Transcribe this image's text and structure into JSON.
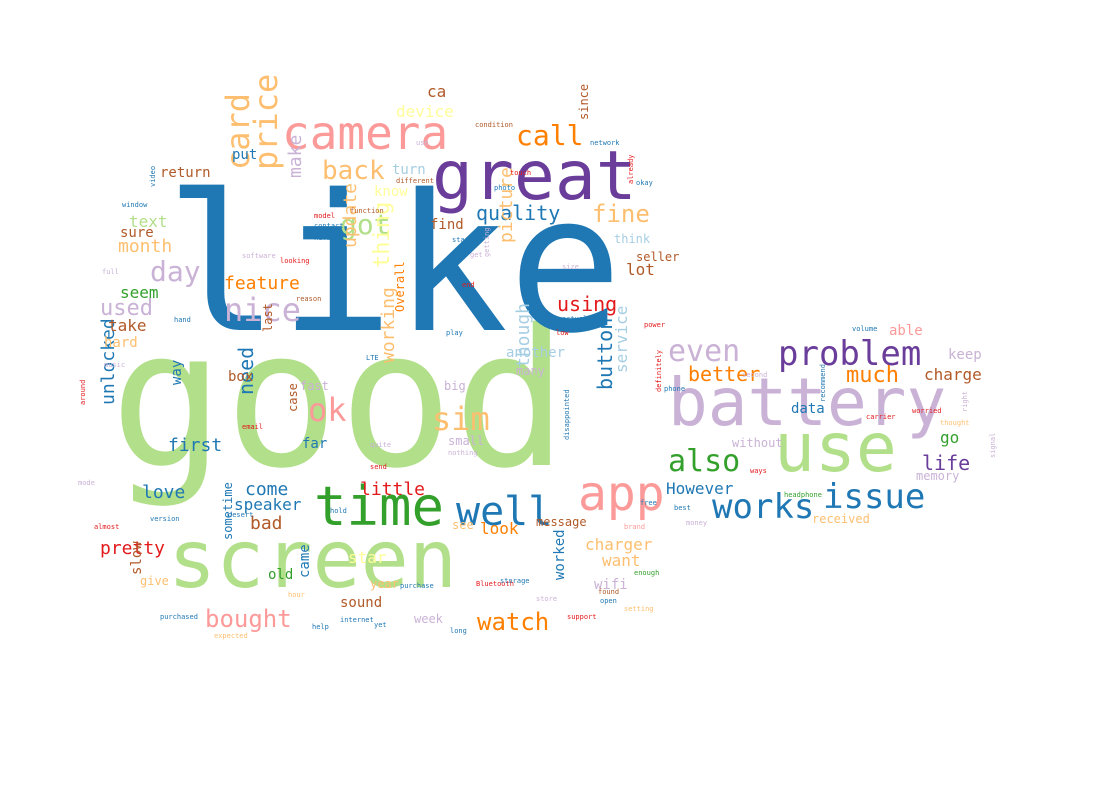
{
  "words": [
    {
      "text": "good",
      "color": "#b2df8a"
    },
    {
      "text": "like",
      "color": "#1f78b4"
    },
    {
      "text": "screen",
      "color": "#b2df8a"
    },
    {
      "text": "great",
      "color": "#6a3d9a"
    },
    {
      "text": "battery",
      "color": "#cab2d6"
    },
    {
      "text": "use",
      "color": "#b2df8a"
    },
    {
      "text": "camera",
      "color": "#fb9a99"
    },
    {
      "text": "time",
      "color": "#33a02c"
    },
    {
      "text": "app",
      "color": "#fb9a99"
    },
    {
      "text": "well",
      "color": "#1f78b4"
    },
    {
      "text": "works",
      "color": "#1f78b4"
    },
    {
      "text": "issue",
      "color": "#1f78b4"
    },
    {
      "text": "problem",
      "color": "#6a3d9a"
    },
    {
      "text": "even",
      "color": "#cab2d6"
    },
    {
      "text": "also",
      "color": "#33a02c"
    },
    {
      "text": "price",
      "color": "#fdbf6f"
    },
    {
      "text": "card",
      "color": "#fdbf6f"
    },
    {
      "text": "call",
      "color": "#ff7f00"
    },
    {
      "text": "back",
      "color": "#fdbf6f"
    },
    {
      "text": "got",
      "color": "#b2df8a"
    },
    {
      "text": "nice",
      "color": "#cab2d6"
    },
    {
      "text": "day",
      "color": "#cab2d6"
    },
    {
      "text": "ok",
      "color": "#fb9a99"
    },
    {
      "text": "sim",
      "color": "#fdbf6f"
    },
    {
      "text": "fine",
      "color": "#fdbf6f"
    },
    {
      "text": "quality",
      "color": "#1f78b4"
    },
    {
      "text": "thing",
      "color": "#ffff99"
    },
    {
      "text": "much",
      "color": "#ff7f00"
    },
    {
      "text": "better",
      "color": "#ff7f00"
    },
    {
      "text": "life",
      "color": "#6a3d9a"
    },
    {
      "text": "bought",
      "color": "#fb9a99"
    },
    {
      "text": "watch",
      "color": "#ff7f00"
    },
    {
      "text": "used",
      "color": "#cab2d6"
    },
    {
      "text": "need",
      "color": "#1f78b4"
    },
    {
      "text": "using",
      "color": "#e31a1c"
    },
    {
      "text": "update",
      "color": "#fdbf6f"
    },
    {
      "text": "feature",
      "color": "#ff7f00"
    },
    {
      "text": "picture",
      "color": "#fdbf6f"
    },
    {
      "text": "make",
      "color": "#cab2d6"
    },
    {
      "text": "month",
      "color": "#fdbf6f"
    },
    {
      "text": "charge",
      "color": "#b15928"
    },
    {
      "text": "first",
      "color": "#1f78b4"
    },
    {
      "text": "unlocked",
      "color": "#1f78b4"
    },
    {
      "text": "love",
      "color": "#1f78b4"
    },
    {
      "text": "come",
      "color": "#1f78b4"
    },
    {
      "text": "little",
      "color": "#e31a1c"
    },
    {
      "text": "However",
      "color": "#1f78b4"
    },
    {
      "text": "button",
      "color": "#1f78b4"
    },
    {
      "text": "though",
      "color": "#a6cee3"
    },
    {
      "text": "working",
      "color": "#fdbf6f"
    },
    {
      "text": "service",
      "color": "#a6cee3"
    },
    {
      "text": "charger",
      "color": "#fdbf6f"
    },
    {
      "text": "pretty",
      "color": "#e31a1c"
    },
    {
      "text": "bad",
      "color": "#b15928"
    },
    {
      "text": "speaker",
      "color": "#1f78b4"
    },
    {
      "text": "look",
      "color": "#ff7f00"
    },
    {
      "text": "text",
      "color": "#b2df8a"
    },
    {
      "text": "seem",
      "color": "#33a02c"
    },
    {
      "text": "take",
      "color": "#b15928"
    },
    {
      "text": "lot",
      "color": "#b15928"
    },
    {
      "text": "return",
      "color": "#b15928"
    },
    {
      "text": "sure",
      "color": "#b15928"
    },
    {
      "text": "go",
      "color": "#33a02c"
    },
    {
      "text": "data",
      "color": "#1f78b4"
    },
    {
      "text": "box",
      "color": "#b15928"
    },
    {
      "text": "keep",
      "color": "#cab2d6"
    },
    {
      "text": "device",
      "color": "#ffff99"
    },
    {
      "text": "ca",
      "color": "#b15928"
    },
    {
      "text": "put",
      "color": "#1f78b4"
    },
    {
      "text": "turn",
      "color": "#a6cee3"
    },
    {
      "text": "know",
      "color": "#ffff99"
    },
    {
      "text": "find",
      "color": "#b15928"
    },
    {
      "text": "think",
      "color": "#a6cee3"
    },
    {
      "text": "seller",
      "color": "#b15928"
    },
    {
      "text": "able",
      "color": "#fb9a99"
    },
    {
      "text": "another",
      "color": "#a6cee3"
    },
    {
      "text": "want",
      "color": "#fdbf6f"
    },
    {
      "text": "star",
      "color": "#ffff99"
    },
    {
      "text": "came",
      "color": "#1f78b4"
    },
    {
      "text": "old",
      "color": "#33a02c"
    },
    {
      "text": "case",
      "color": "#b15928"
    },
    {
      "text": "far",
      "color": "#1f78b4"
    },
    {
      "text": "hard",
      "color": "#fdbf6f"
    },
    {
      "text": "message",
      "color": "#b15928"
    },
    {
      "text": "wifi",
      "color": "#cab2d6"
    },
    {
      "text": "sound",
      "color": "#b15928"
    },
    {
      "text": "year",
      "color": "#fdbf6f"
    },
    {
      "text": "week",
      "color": "#cab2d6"
    },
    {
      "text": "worked",
      "color": "#1f78b4"
    },
    {
      "text": "slow",
      "color": "#b15928"
    },
    {
      "text": "give",
      "color": "#fdbf6f"
    },
    {
      "text": "sometime",
      "color": "#1f78b4"
    },
    {
      "text": "last",
      "color": "#b15928"
    },
    {
      "text": "Overall",
      "color": "#ff7f00"
    },
    {
      "text": "way",
      "color": "#1f78b4"
    },
    {
      "text": "many",
      "color": "#cab2d6"
    },
    {
      "text": "small",
      "color": "#cab2d6"
    },
    {
      "text": "without",
      "color": "#cab2d6"
    },
    {
      "text": "memory",
      "color": "#cab2d6"
    },
    {
      "text": "since",
      "color": "#b15928"
    },
    {
      "text": "received",
      "color": "#fdbf6f"
    },
    {
      "text": "fast",
      "color": "#cab2d6"
    },
    {
      "text": "big",
      "color": "#cab2d6"
    },
    {
      "text": "see",
      "color": "#fdbf6f"
    },
    {
      "text": "condition",
      "color": "#b15928"
    },
    {
      "text": "network",
      "color": "#1f78b4"
    },
    {
      "text": "different",
      "color": "#b15928"
    },
    {
      "text": "contact",
      "color": "#1f78b4"
    },
    {
      "text": "function",
      "color": "#b15928"
    },
    {
      "text": "software",
      "color": "#cab2d6"
    },
    {
      "text": "Bluetooth",
      "color": "#e31a1c"
    },
    {
      "text": "internet",
      "color": "#1f78b4"
    },
    {
      "text": "purchase",
      "color": "#1f78b4"
    },
    {
      "text": "storage",
      "color": "#1f78b4"
    },
    {
      "text": "support",
      "color": "#e31a1c"
    },
    {
      "text": "purchased",
      "color": "#1f78b4"
    },
    {
      "text": "expected",
      "color": "#fdbf6f"
    },
    {
      "text": "version",
      "color": "#1f78b4"
    },
    {
      "text": "enough",
      "color": "#33a02c"
    },
    {
      "text": "photo",
      "color": "#1f78b4"
    },
    {
      "text": "window",
      "color": "#1f78b4"
    },
    {
      "text": "video",
      "color": "#1f78b4"
    },
    {
      "text": "model",
      "color": "#e31a1c"
    },
    {
      "text": "full",
      "color": "#cab2d6"
    },
    {
      "text": "hand",
      "color": "#1f78b4"
    },
    {
      "text": "power",
      "color": "#e31a1c"
    },
    {
      "text": "volume",
      "color": "#1f78b4"
    },
    {
      "text": "worried",
      "color": "#e31a1c"
    },
    {
      "text": "thought",
      "color": "#fdbf6f"
    },
    {
      "text": "right",
      "color": "#cab2d6"
    },
    {
      "text": "signal",
      "color": "#cab2d6"
    },
    {
      "text": "around",
      "color": "#e31a1c"
    },
    {
      "text": "almost",
      "color": "#e31a1c"
    },
    {
      "text": "mode",
      "color": "#cab2d6"
    },
    {
      "text": "music",
      "color": "#cab2d6"
    },
    {
      "text": "email",
      "color": "#e31a1c"
    },
    {
      "text": "setting",
      "color": "#fdbf6f"
    },
    {
      "text": "help",
      "color": "#1f78b4"
    },
    {
      "text": "long",
      "color": "#1f78b4"
    },
    {
      "text": "open",
      "color": "#1f78b4"
    },
    {
      "text": "found",
      "color": "#b15928"
    },
    {
      "text": "brand",
      "color": "#fb9a99"
    },
    {
      "text": "money",
      "color": "#cab2d6"
    },
    {
      "text": "best",
      "color": "#1f78b4"
    },
    {
      "text": "ways",
      "color": "#e31a1c"
    },
    {
      "text": "headphone",
      "color": "#33a02c"
    },
    {
      "text": "recommend",
      "color": "#1f78b4"
    },
    {
      "text": "carrier",
      "color": "#e31a1c"
    },
    {
      "text": "actually",
      "color": "#1f78b4"
    },
    {
      "text": "play",
      "color": "#1f78b4"
    },
    {
      "text": "send",
      "color": "#e31a1c"
    },
    {
      "text": "quite",
      "color": "#cab2d6"
    },
    {
      "text": "hold",
      "color": "#1f78b4"
    },
    {
      "text": "nothing",
      "color": "#cab2d6"
    },
    {
      "text": "touch",
      "color": "#e31a1c"
    },
    {
      "text": "start",
      "color": "#1f78b4"
    },
    {
      "text": "getting",
      "color": "#cab2d6"
    },
    {
      "text": "reason",
      "color": "#b15928"
    },
    {
      "text": "number",
      "color": "#1f78b4"
    },
    {
      "text": "looking",
      "color": "#e31a1c"
    },
    {
      "text": "already",
      "color": "#e31a1c"
    },
    {
      "text": "okay",
      "color": "#1f78b4"
    },
    {
      "text": "second",
      "color": "#cab2d6"
    },
    {
      "text": "definitely",
      "color": "#e31a1c"
    },
    {
      "text": "disappointed",
      "color": "#1f78b4"
    },
    {
      "text": "desert",
      "color": "#1f78b4"
    },
    {
      "text": "yet",
      "color": "#1f78b4"
    },
    {
      "text": "use",
      "color": "#cab2d6"
    },
    {
      "text": "LTE",
      "color": "#1f78b4"
    },
    {
      "text": "size",
      "color": "#cab2d6"
    },
    {
      "text": "end",
      "color": "#e31a1c"
    },
    {
      "text": "get",
      "color": "#cab2d6"
    },
    {
      "text": "phone",
      "color": "#1f78b4"
    },
    {
      "text": "free",
      "color": "#1f78b4"
    },
    {
      "text": "store",
      "color": "#cab2d6"
    },
    {
      "text": "hour",
      "color": "#fdbf6f"
    },
    {
      "text": "low",
      "color": "#e31a1c"
    }
  ]
}
